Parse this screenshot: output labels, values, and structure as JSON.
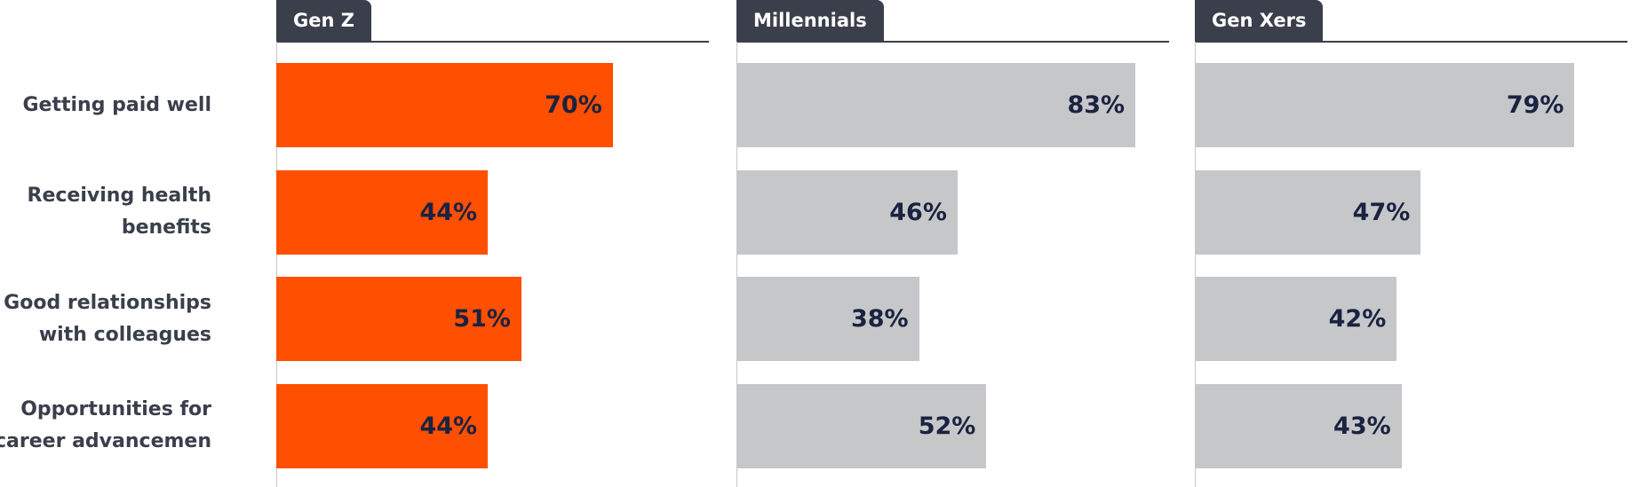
{
  "chart_data": {
    "type": "bar",
    "orientation": "horizontal",
    "categories": [
      "Getting paid well",
      "Receiving health benefits",
      "Good relationships with colleagues",
      "Opportunities for career advancemen"
    ],
    "xlim": [
      0,
      90
    ],
    "series": [
      {
        "name": "Gen Z",
        "color": "#ff4f00",
        "values": [
          70,
          44,
          51,
          44
        ],
        "value_labels": [
          "70%",
          "44%",
          "51%",
          "44%"
        ]
      },
      {
        "name": "Millennials",
        "color": "#c6c7c9",
        "values": [
          83,
          46,
          38,
          52
        ],
        "value_labels": [
          "83%",
          "46%",
          "38%",
          "52%"
        ]
      },
      {
        "name": "Gen Xers",
        "color": "#c6c7c9",
        "values": [
          79,
          47,
          42,
          43
        ],
        "value_labels": [
          "79%",
          "47%",
          "42%",
          "43%"
        ]
      }
    ]
  }
}
